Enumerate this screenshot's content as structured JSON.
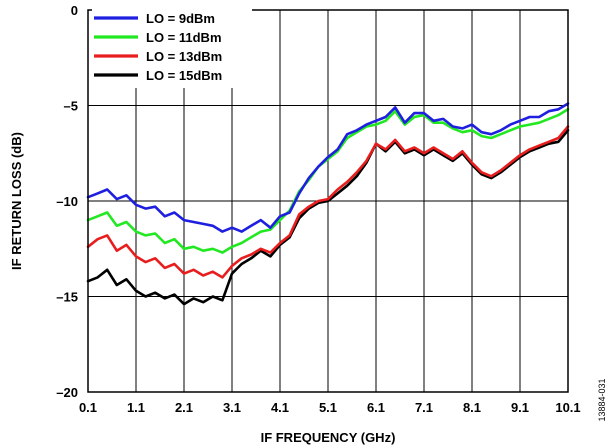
{
  "chart_data": {
    "type": "line",
    "title": "",
    "xlabel": "IF FREQUENCY (GHz)",
    "ylabel": "IF RETURN LOSS (dB)",
    "xlim": [
      0.1,
      10.1
    ],
    "ylim": [
      -20,
      0
    ],
    "xticks": [
      0.1,
      1.1,
      2.1,
      3.1,
      4.1,
      5.1,
      6.1,
      7.1,
      8.1,
      9.1,
      10.1
    ],
    "xtick_labels": [
      "0.1",
      "1.1",
      "2.1",
      "3.1",
      "4.1",
      "5.1",
      "6.1",
      "7.1",
      "8.1",
      "9.1",
      "10.1"
    ],
    "yticks": [
      0,
      -5,
      -10,
      -15,
      -20
    ],
    "ytick_labels": [
      "0",
      "–5",
      "–10",
      "–15",
      "–20"
    ],
    "grid": true,
    "legend_position": "top-left",
    "figure_id": "13884-031",
    "series": [
      {
        "name": "LO = 9dBm",
        "color": "#1f1fe0",
        "x": [
          0.1,
          0.3,
          0.5,
          0.7,
          0.9,
          1.1,
          1.3,
          1.5,
          1.7,
          1.9,
          2.1,
          2.3,
          2.5,
          2.7,
          2.9,
          3.1,
          3.3,
          3.5,
          3.7,
          3.9,
          4.1,
          4.3,
          4.5,
          4.7,
          4.9,
          5.1,
          5.3,
          5.5,
          5.7,
          5.9,
          6.1,
          6.3,
          6.5,
          6.7,
          6.9,
          7.1,
          7.3,
          7.5,
          7.7,
          7.9,
          8.1,
          8.3,
          8.5,
          8.7,
          8.9,
          9.1,
          9.3,
          9.5,
          9.7,
          9.9,
          10.1
        ],
        "y": [
          -9.8,
          -9.6,
          -9.4,
          -9.9,
          -9.7,
          -10.2,
          -10.4,
          -10.3,
          -10.8,
          -10.6,
          -11.0,
          -11.1,
          -11.2,
          -11.3,
          -11.6,
          -11.4,
          -11.6,
          -11.3,
          -11.0,
          -11.4,
          -10.8,
          -10.6,
          -9.6,
          -8.8,
          -8.2,
          -7.7,
          -7.3,
          -6.5,
          -6.3,
          -6.0,
          -5.8,
          -5.6,
          -5.1,
          -5.9,
          -5.4,
          -5.4,
          -5.8,
          -5.7,
          -6.1,
          -6.2,
          -6.0,
          -6.4,
          -6.5,
          -6.3,
          -6.0,
          -5.8,
          -5.6,
          -5.6,
          -5.3,
          -5.2,
          -4.9
        ]
      },
      {
        "name": "LO = 11dBm",
        "color": "#22e822",
        "x": [
          0.1,
          0.3,
          0.5,
          0.7,
          0.9,
          1.1,
          1.3,
          1.5,
          1.7,
          1.9,
          2.1,
          2.3,
          2.5,
          2.7,
          2.9,
          3.1,
          3.3,
          3.5,
          3.7,
          3.9,
          4.1,
          4.3,
          4.5,
          4.7,
          4.9,
          5.1,
          5.3,
          5.5,
          5.7,
          5.9,
          6.1,
          6.3,
          6.5,
          6.7,
          6.9,
          7.1,
          7.3,
          7.5,
          7.7,
          7.9,
          8.1,
          8.3,
          8.5,
          8.7,
          8.9,
          9.1,
          9.3,
          9.5,
          9.7,
          9.9,
          10.1
        ],
        "y": [
          -11.0,
          -10.8,
          -10.6,
          -11.3,
          -11.1,
          -11.6,
          -11.8,
          -11.7,
          -12.2,
          -12.0,
          -12.5,
          -12.4,
          -12.6,
          -12.5,
          -12.7,
          -12.4,
          -12.2,
          -11.9,
          -11.6,
          -11.5,
          -11.0,
          -10.5,
          -9.5,
          -8.9,
          -8.2,
          -7.8,
          -7.4,
          -6.7,
          -6.4,
          -6.1,
          -6.0,
          -5.8,
          -5.3,
          -6.0,
          -5.6,
          -5.5,
          -5.9,
          -5.9,
          -6.2,
          -6.4,
          -6.3,
          -6.6,
          -6.7,
          -6.5,
          -6.3,
          -6.1,
          -6.0,
          -5.9,
          -5.7,
          -5.5,
          -5.2
        ]
      },
      {
        "name": "LO = 13dBm",
        "color": "#e81e1e",
        "x": [
          0.1,
          0.3,
          0.5,
          0.7,
          0.9,
          1.1,
          1.3,
          1.5,
          1.7,
          1.9,
          2.1,
          2.3,
          2.5,
          2.7,
          2.9,
          3.1,
          3.3,
          3.5,
          3.7,
          3.9,
          4.1,
          4.3,
          4.5,
          4.7,
          4.9,
          5.1,
          5.3,
          5.5,
          5.7,
          5.9,
          6.1,
          6.3,
          6.5,
          6.7,
          6.9,
          7.1,
          7.3,
          7.5,
          7.7,
          7.9,
          8.1,
          8.3,
          8.5,
          8.7,
          8.9,
          9.1,
          9.3,
          9.5,
          9.7,
          9.9,
          10.1
        ],
        "y": [
          -12.4,
          -12.0,
          -11.8,
          -12.6,
          -12.3,
          -12.9,
          -13.2,
          -13.0,
          -13.5,
          -13.3,
          -13.8,
          -13.6,
          -13.9,
          -13.7,
          -14.0,
          -13.4,
          -13.0,
          -12.8,
          -12.5,
          -12.7,
          -12.2,
          -11.8,
          -10.7,
          -10.3,
          -10.0,
          -9.9,
          -9.4,
          -9.0,
          -8.5,
          -7.9,
          -7.0,
          -7.3,
          -6.8,
          -7.4,
          -7.2,
          -7.5,
          -7.2,
          -7.5,
          -7.8,
          -7.4,
          -8.0,
          -8.5,
          -8.7,
          -8.4,
          -8.0,
          -7.6,
          -7.3,
          -7.1,
          -6.9,
          -6.7,
          -6.1
        ]
      },
      {
        "name": "LO = 15dBm",
        "color": "#000000",
        "x": [
          0.1,
          0.3,
          0.5,
          0.7,
          0.9,
          1.1,
          1.3,
          1.5,
          1.7,
          1.9,
          2.1,
          2.3,
          2.5,
          2.7,
          2.9,
          3.1,
          3.3,
          3.5,
          3.7,
          3.9,
          4.1,
          4.3,
          4.5,
          4.7,
          4.9,
          5.1,
          5.3,
          5.5,
          5.7,
          5.9,
          6.1,
          6.3,
          6.5,
          6.7,
          6.9,
          7.1,
          7.3,
          7.5,
          7.7,
          7.9,
          8.1,
          8.3,
          8.5,
          8.7,
          8.9,
          9.1,
          9.3,
          9.5,
          9.7,
          9.9,
          10.1
        ],
        "y": [
          -14.2,
          -14.0,
          -13.6,
          -14.4,
          -14.1,
          -14.7,
          -15.0,
          -14.8,
          -15.1,
          -14.9,
          -15.4,
          -15.1,
          -15.3,
          -15.0,
          -15.2,
          -13.8,
          -13.3,
          -13.0,
          -12.6,
          -12.9,
          -12.3,
          -11.9,
          -10.9,
          -10.4,
          -10.1,
          -10.0,
          -9.6,
          -9.2,
          -8.7,
          -8.0,
          -7.0,
          -7.4,
          -6.9,
          -7.5,
          -7.3,
          -7.6,
          -7.3,
          -7.6,
          -7.9,
          -7.5,
          -8.1,
          -8.6,
          -8.8,
          -8.5,
          -8.1,
          -7.7,
          -7.4,
          -7.2,
          -7.0,
          -6.9,
          -6.3
        ]
      }
    ]
  }
}
